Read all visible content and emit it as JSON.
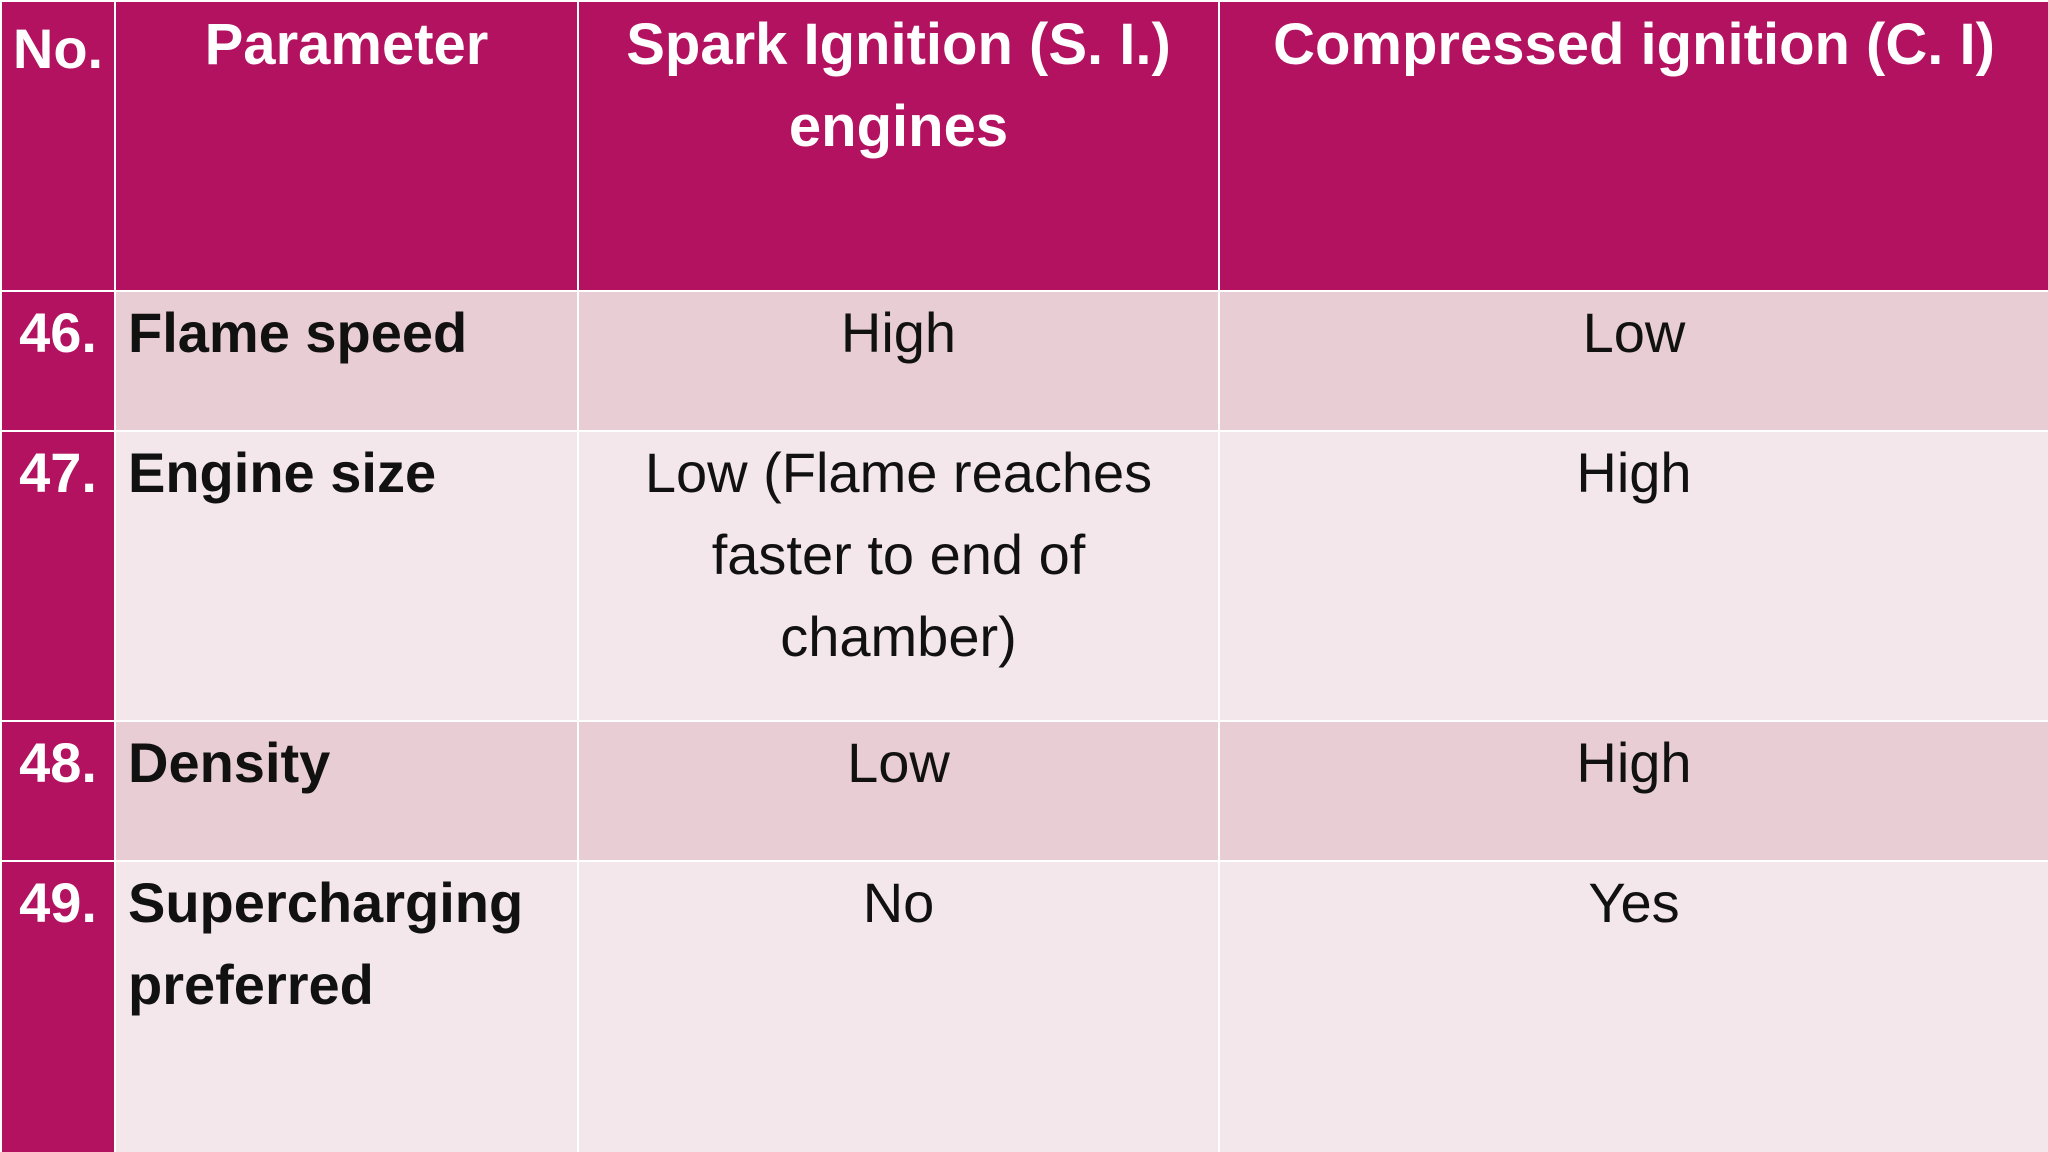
{
  "table": {
    "headers": {
      "no": "No.",
      "parameter": "Parameter",
      "si": "Spark Ignition (S. I.) engines",
      "ci": "Compressed ignition (C. I)"
    },
    "rows": [
      {
        "no": "46.",
        "parameter": "Flame speed",
        "si": "High",
        "ci": "Low"
      },
      {
        "no": "47.",
        "parameter": "Engine size",
        "si": "Low (Flame reaches faster to end of chamber)",
        "ci": "High"
      },
      {
        "no": "48.",
        "parameter": "Density",
        "si": "Low",
        "ci": "High"
      },
      {
        "no": "49.",
        "parameter": "Supercharging preferred",
        "si": "No",
        "ci": "Yes"
      }
    ]
  },
  "colors": {
    "header_bg": "#b31260",
    "row_band_dark": "#e8cdd4",
    "row_band_light": "#f3e7eb",
    "header_text": "#ffffff"
  }
}
